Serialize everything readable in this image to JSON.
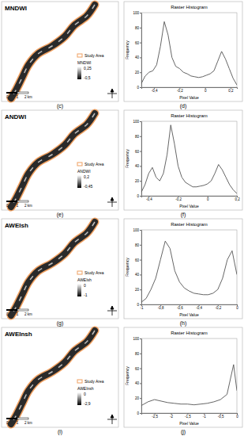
{
  "maps": [
    {
      "title": "MNDWI",
      "panel_label": "(c)",
      "legend_label": "Study Area",
      "index_name": "MNDWI",
      "index_max": "0,25",
      "index_min": "-0,5",
      "scale_labels": [
        "0",
        "1",
        "2 km"
      ]
    },
    {
      "title": "ANDWI",
      "panel_label": "(e)",
      "legend_label": "Study Area",
      "index_name": "ANDWI",
      "index_max": "0,2",
      "index_min": "-0,45",
      "scale_labels": [
        "0",
        "1",
        "2 km"
      ]
    },
    {
      "title": "AWEIsh",
      "panel_label": "(g)",
      "legend_label": "Study Area",
      "index_name": "AWEIsh",
      "index_max": "0",
      "index_min": "-1",
      "scale_labels": [
        "0",
        "1",
        "2 km"
      ]
    },
    {
      "title": "AWEInsh",
      "panel_label": "(i)",
      "legend_label": "Study Area",
      "index_name": "AWEInsh",
      "index_max": "0",
      "index_min": "-2,9",
      "scale_labels": [
        "0",
        "1",
        "2 km"
      ]
    }
  ],
  "chart_data": [
    {
      "type": "line",
      "title": "Raster Histogram",
      "x_label": "Pixel Value",
      "y_label": "Frequency",
      "annotations": [
        "(d)"
      ],
      "color": "#555555",
      "x": [
        -0.5,
        -0.47,
        -0.44,
        -0.41,
        -0.38,
        -0.35,
        -0.32,
        -0.29,
        -0.26,
        -0.23,
        -0.2,
        -0.17,
        -0.14,
        -0.11,
        -0.08,
        -0.05,
        -0.02,
        0.01,
        0.04,
        0.07,
        0.1,
        0.13,
        0.16,
        0.19,
        0.22,
        0.25
      ],
      "values": [
        5,
        15,
        20,
        22,
        30,
        55,
        88,
        70,
        40,
        28,
        25,
        20,
        18,
        15,
        14,
        13,
        14,
        16,
        18,
        22,
        35,
        48,
        38,
        25,
        12,
        3
      ],
      "xlim": [
        -0.5,
        0.25
      ],
      "xticks": [
        {
          "value": -0.4,
          "label": "-0,4"
        },
        {
          "value": -0.2,
          "label": "-0,2"
        },
        0,
        {
          "value": 0.2,
          "label": "0,2"
        }
      ],
      "ylim": [
        0,
        100
      ],
      "yticks": [
        0,
        20,
        40,
        60,
        80,
        100
      ]
    },
    {
      "type": "line",
      "title": "Raster Histogram",
      "x_label": "Pixel Value",
      "y_label": "Frequency",
      "annotations": [
        "(f)"
      ],
      "color": "#555555",
      "x": [
        -0.45,
        -0.425,
        -0.4,
        -0.375,
        -0.35,
        -0.325,
        -0.3,
        -0.275,
        -0.25,
        -0.225,
        -0.2,
        -0.175,
        -0.15,
        -0.125,
        -0.1,
        -0.075,
        -0.05,
        -0.025,
        0,
        0.025,
        0.05,
        0.075,
        0.1,
        0.125,
        0.15,
        0.175,
        0.2
      ],
      "values": [
        5,
        15,
        30,
        38,
        25,
        20,
        30,
        55,
        95,
        70,
        40,
        25,
        18,
        15,
        12,
        12,
        13,
        14,
        16,
        20,
        30,
        42,
        35,
        25,
        15,
        8,
        3
      ],
      "xlim": [
        -0.45,
        0.2
      ],
      "xticks": [
        {
          "value": -0.4,
          "label": "-0,4"
        },
        {
          "value": -0.2,
          "label": "-0,2"
        },
        0,
        {
          "value": 0.2,
          "label": "0,2"
        }
      ],
      "ylim": [
        0,
        100
      ],
      "yticks": [
        0,
        20,
        40,
        60,
        80,
        100
      ]
    },
    {
      "type": "line",
      "title": "Raster Histogram",
      "x_label": "Pixel Value",
      "y_label": "Frequency",
      "annotations": [
        "(h)"
      ],
      "color": "#555555",
      "x": [
        -1,
        -0.95,
        -0.9,
        -0.85,
        -0.8,
        -0.75,
        -0.7,
        -0.65,
        -0.6,
        -0.55,
        -0.5,
        -0.45,
        -0.4,
        -0.35,
        -0.3,
        -0.25,
        -0.2,
        -0.15,
        -0.1,
        -0.05,
        0
      ],
      "values": [
        3,
        8,
        20,
        35,
        60,
        85,
        75,
        45,
        30,
        22,
        18,
        15,
        14,
        13,
        13,
        15,
        20,
        35,
        60,
        72,
        40
      ],
      "xlim": [
        -1,
        0
      ],
      "xticks": [
        -1,
        {
          "value": -0.8,
          "label": "-0,8"
        },
        {
          "value": -0.6,
          "label": "-0,6"
        },
        {
          "value": -0.4,
          "label": "-0,4"
        },
        {
          "value": -0.2,
          "label": "-0,2"
        },
        0
      ],
      "ylim": [
        0,
        100
      ],
      "yticks": [
        0,
        20,
        40,
        60,
        80,
        100
      ]
    },
    {
      "type": "line",
      "title": "Raster Histogram",
      "x_label": "Pixel Value",
      "y_label": "Frequency",
      "annotations": [
        "(j)"
      ],
      "color": "#555555",
      "x": [
        -2.9,
        -2.7,
        -2.5,
        -2.3,
        -2.1,
        -1.9,
        -1.7,
        -1.5,
        -1.3,
        -1.1,
        -0.9,
        -0.7,
        -0.5,
        -0.3,
        -0.1,
        0
      ],
      "values": [
        10,
        15,
        18,
        16,
        14,
        13,
        12,
        12,
        11,
        12,
        13,
        15,
        18,
        25,
        65,
        30
      ],
      "xlim": [
        -2.9,
        0
      ],
      "xticks": [
        {
          "value": -2.5,
          "label": "-2,5"
        },
        -2,
        {
          "value": -1.5,
          "label": "-1,5"
        },
        -1,
        {
          "value": -0.5,
          "label": "-0,5"
        },
        0
      ],
      "ylim": [
        0,
        100
      ],
      "yticks": [
        0,
        20,
        40,
        60,
        80,
        100
      ]
    }
  ]
}
